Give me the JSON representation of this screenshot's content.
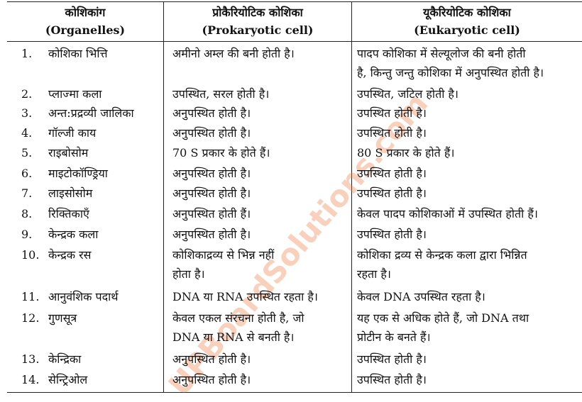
{
  "header": {
    "col1": [
      "कोशिकांग",
      "(Organelles)"
    ],
    "col2": [
      "प्रोकैरियोटिक कोशिका",
      "(Prokaryotic cell)"
    ],
    "col3": [
      "यूकैरियोटिक कोशिका",
      "(Eukaryotic cell)"
    ]
  },
  "watermark": "UPBoardSolutions.com",
  "rows": [
    {
      "num": "1.",
      "name": "कोशिका भित्ति",
      "prokaryotic": [
        "अमीनो अम्ल की बनी होती है।"
      ],
      "eukaryotic": [
        "पादप कोशिका में सेल्यूलोज की बनी होती",
        "है, किन्तु जन्तु कोशिका में अनुपस्थित होती है।"
      ]
    },
    {
      "num": "2.",
      "name": "प्लाज्मा कला",
      "prokaryotic": [
        "उपस्थित, सरल होती है।"
      ],
      "eukaryotic": [
        "उपस्थित, जटिल होती है।"
      ]
    },
    {
      "num": "3.",
      "name": "अन्त:प्रद्रव्यी जालिका",
      "prokaryotic": [
        "अनुपस्थित होती है।"
      ],
      "eukaryotic": [
        "उपस्थित होती है।"
      ]
    },
    {
      "num": "4.",
      "name": "गॉल्जी काय",
      "prokaryotic": [
        "अनुपस्थित होती है।"
      ],
      "eukaryotic": [
        "उपस्थित होती है।"
      ]
    },
    {
      "num": "5.",
      "name": "राइबोसोम",
      "prokaryotic": [
        "70 S प्रकार के होते हैं।"
      ],
      "eukaryotic": [
        "80 S प्रकार के होते हैं।"
      ]
    },
    {
      "num": "6.",
      "name": "माइटोकॉण्ड्रिया",
      "prokaryotic": [
        "अनुपस्थित होती है।"
      ],
      "eukaryotic": [
        "उपस्थित होती है।"
      ]
    },
    {
      "num": "7.",
      "name": "लाइसोसोम",
      "prokaryotic": [
        "अनुपस्थित होती है।"
      ],
      "eukaryotic": [
        "उपस्थित होती है।"
      ]
    },
    {
      "num": "8.",
      "name": "रिक्तिकाएँ",
      "prokaryotic": [
        "अनुपस्थित होती हैं।"
      ],
      "eukaryotic": [
        "केवल पादप कोशिकाओं में उपस्थित होती हैं।"
      ]
    },
    {
      "num": "9.",
      "name": "केन्द्रक कला",
      "prokaryotic": [
        "अनुपस्थित होती है।"
      ],
      "eukaryotic": [
        "उपस्थित होती है।"
      ]
    },
    {
      "num": "10.",
      "name": "केन्द्रक रस",
      "prokaryotic": [
        "कोशिकाद्रव्य से भिन्न नहीं",
        "होता है।"
      ],
      "eukaryotic": [
        "कोशिका द्रव्य से केन्द्रक कला द्वारा भिन्नित",
        "रहता है।"
      ]
    },
    {
      "num": "11.",
      "name": "आनुवंशिक पदार्थ",
      "prokaryotic": [
        "DNA या RNA उपस्थित रहता है।"
      ],
      "eukaryotic": [
        "केवल DNA उपस्थित रहता है।"
      ]
    },
    {
      "num": "12.",
      "name": "गुणसूत्र",
      "prokaryotic": [
        "केवल एकल संरचना होती है, जो",
        "DNA या RNA से बनती है।"
      ],
      "eukaryotic": [
        "यह एक से अधिक होते हैं, जो DNA तथा",
        "प्रोटीन के बनते हैं।"
      ]
    },
    {
      "num": "13.",
      "name": "केन्द्रिका",
      "prokaryotic": [
        "अनुपस्थित होती है।"
      ],
      "eukaryotic": [
        "उपस्थित होती है।"
      ]
    },
    {
      "num": "14.",
      "name": "सेन्ट्रिओल",
      "prokaryotic": [
        "अनुपस्थित होती है।"
      ],
      "eukaryotic": [
        "उपस्थित होती है।"
      ]
    }
  ]
}
